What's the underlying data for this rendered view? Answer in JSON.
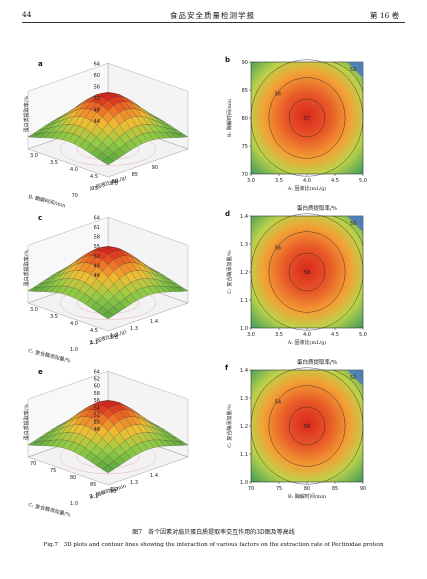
{
  "header": {
    "page": "44",
    "journal": "食品安全质量检测学报",
    "volume": "第 16 卷"
  },
  "panels": [
    {
      "label": "a",
      "type": "surface",
      "zlabel": "蛋白质提取率/%",
      "zticks": [
        "64",
        "60",
        "56",
        "52",
        "48",
        "44"
      ],
      "xlabel": "A: 固液比(mL/g)",
      "xticks": [
        "3.0",
        "3.5",
        "4.0",
        "4.5",
        "5.0"
      ],
      "ylabel": "B: 酶解时间/min",
      "yticks": [
        "70",
        "75",
        "80",
        "85",
        "90"
      ]
    },
    {
      "label": "b",
      "type": "contour",
      "title": "",
      "xlabel": "A: 固液比(mL/g)",
      "xticks": [
        "3.0",
        "3.5",
        "4.0",
        "4.5",
        "5.0"
      ],
      "ylabel": "B: 酶解时间/min",
      "yticks": [
        "70",
        "75",
        "80",
        "85",
        "90"
      ],
      "center": "57",
      "ring": "56",
      "corner": "52"
    },
    {
      "label": "c",
      "type": "surface",
      "zlabel": "蛋白质提取率/%",
      "zticks": [
        "64",
        "61",
        "58",
        "55",
        "52",
        "49",
        "46"
      ],
      "xlabel": "A: 固液比(mL/g)",
      "xticks": [
        "3.0",
        "3.5",
        "4.0",
        "4.5",
        "5.0"
      ],
      "ylabel": "C: 复合酶添加量/%",
      "yticks": [
        "1.0",
        "1.1",
        "1.2",
        "1.3",
        "1.4"
      ]
    },
    {
      "label": "d",
      "type": "contour",
      "title": "蛋白质提取率/%",
      "xlabel": "A: 固液比(mL/g)",
      "xticks": [
        "3.0",
        "3.5",
        "4.0",
        "4.5",
        "5.0"
      ],
      "ylabel": "C: 复合酶添加量/%",
      "yticks": [
        "1.0",
        "1.1",
        "1.2",
        "1.3",
        "1.4"
      ],
      "center": "58",
      "ring": "56",
      "corner": "50"
    },
    {
      "label": "e",
      "type": "surface",
      "zlabel": "蛋白质提取率/%",
      "zticks": [
        "64",
        "62",
        "60",
        "58",
        "56",
        "54",
        "52",
        "50",
        "48"
      ],
      "xlabel": "B: 酶解时间/min",
      "xticks": [
        "70",
        "75",
        "80",
        "85",
        "90"
      ],
      "ylabel": "C: 复合酶添加量/%",
      "yticks": [
        "1.0",
        "1.1",
        "1.2",
        "1.3",
        "1.4"
      ]
    },
    {
      "label": "f",
      "type": "contour",
      "title": "蛋白质提取率/%",
      "xlabel": "B: 酶解时间/min",
      "xticks": [
        "70",
        "75",
        "80",
        "85",
        "90"
      ],
      "ylabel": "C: 复合酶添加量/%",
      "yticks": [
        "1.0",
        "1.1",
        "1.2",
        "1.3",
        "1.4"
      ],
      "center": "56",
      "ring": "54",
      "corner": "52"
    }
  ],
  "caption": {
    "zh": "图7　各个因素对扇贝蛋白质提取率交互作用的3D图及等高线",
    "en": "Fig.7　3D plots and contour lines showing the interaction of various factors on the extraction rate of Pectinidae protein"
  },
  "colors": {
    "peak": "#d9281e",
    "mid": "#f0a030",
    "low": "#8cc84a",
    "base": "#2a8a3a"
  }
}
